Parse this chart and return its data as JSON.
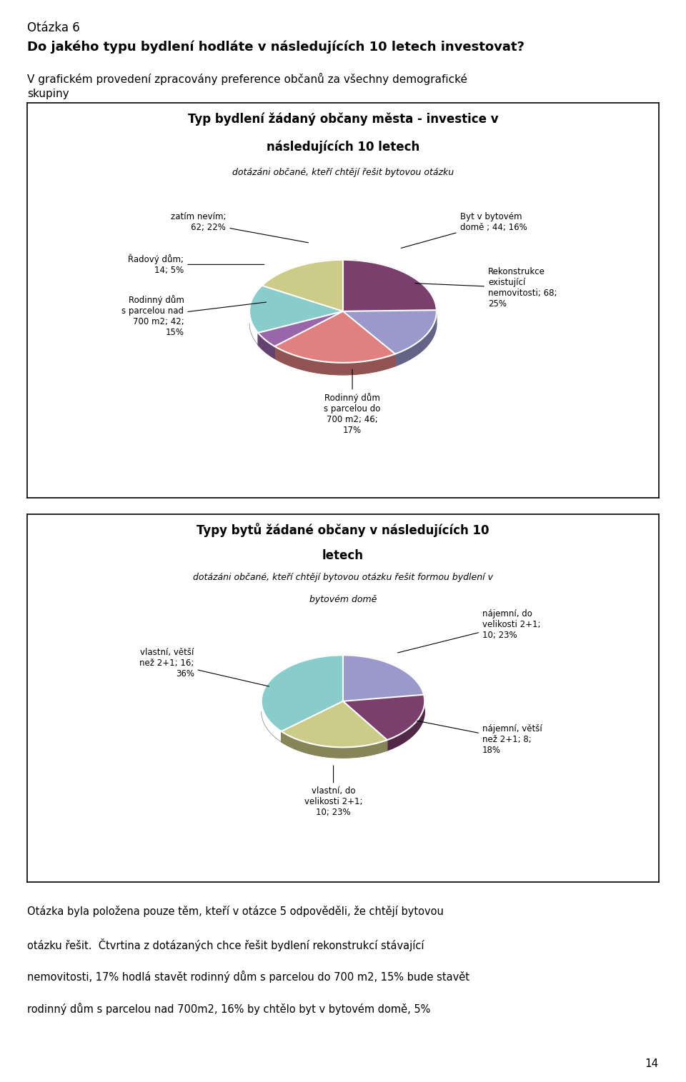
{
  "page_title": "Otázka 6",
  "question": "Do jakého typu bydlení hodláte v následujících 10 letech investovat?",
  "intro_text_line1": "V grafickém provedení zpracovány preference občanů za všechny demografické",
  "intro_text_line2": "skupiny",
  "chart1_title_line1": "Typ bydlení žádaný občany města - investice v",
  "chart1_title_line2": "následujících 10 letech",
  "chart1_subtitle": "dotázáni občané, kteří chtějí řešit bytovou otázku",
  "chart1_slices": [
    {
      "label": "Rekonstrukce\nexistující\nnemovitosti; 68;\n25%",
      "value": 68,
      "color": "#7B3F6E"
    },
    {
      "label": "Byt v bytovém\ndomě ; 44; 16%",
      "value": 44,
      "color": "#9999CC"
    },
    {
      "label": "zatím nevím;\n62; 22%",
      "value": 62,
      "color": "#E08080"
    },
    {
      "label": "Řadový dům;\n14; 5%",
      "value": 14,
      "color": "#9966AA"
    },
    {
      "label": "Rodinný dům\ns parcelou nad\n700 m2; 42;\n15%",
      "value": 42,
      "color": "#88CCCC"
    },
    {
      "label": "Rodinný dům\ns parcelou do\n700 m2; 46;\n17%",
      "value": 46,
      "color": "#CCCC88"
    }
  ],
  "chart2_title_line1": "Typy bytů žádané občany v následujících 10",
  "chart2_title_line2": "letech",
  "chart2_subtitle_line1": "dotázáni občané, kteří chtějí bytovou otázku řešit formou bydlení v",
  "chart2_subtitle_line2": "bytovém domě",
  "chart2_slices": [
    {
      "label": "nájemní, do\nvelikosti 2+1;\n10; 23%",
      "value": 10,
      "color": "#9999CC"
    },
    {
      "label": "nájemní, větší\nnež 2+1; 8;\n18%",
      "value": 8,
      "color": "#7B3F6E"
    },
    {
      "label": "vlastní, do\nvelikosti 2+1;\n10; 23%",
      "value": 10,
      "color": "#CCCC88"
    },
    {
      "label": "vlastní, větší\nnež 2+1; 16;\n36%",
      "value": 16,
      "color": "#88CCCC"
    }
  ],
  "footer_text_line1": "Otázka byla položena pouze těm, kteří v otázce 5 odpověděli, že chtějí bytovou",
  "footer_text_line2": "otázku řešit.  Čtvrtina z dotázaných chce řešit bydlení rekonstrukcí stávající",
  "footer_text_line3": "nemovitosti, 17% hodlá stavět rodinný dům s parcelou do 700 m2, 15% bude stavět",
  "footer_text_line4": "rodinný dům s parcelou nad 700m2, 16% by chtělo byt v bytovém domě, 5%",
  "page_number": "14",
  "bg_color": "#FFFFFF",
  "box_border_color": "#000000",
  "text_color": "#000000"
}
